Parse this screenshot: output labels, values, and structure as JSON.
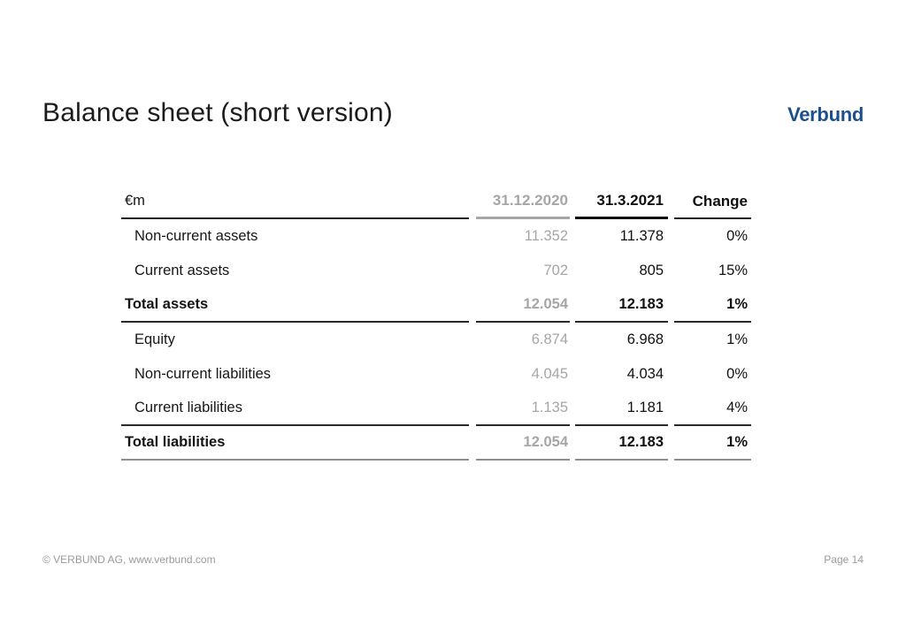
{
  "slide": {
    "title": "Balance sheet (short version)",
    "logo_text": "Verbund",
    "footer_left": "© VERBUND AG, www.verbund.com",
    "footer_right": "Page 14"
  },
  "colors": {
    "logo_blue": "#1c4f90",
    "prior_period_gray": "#a6a6a6",
    "text_black": "#161616",
    "footer_gray": "#9b9b9b"
  },
  "table": {
    "unit_label": "€m",
    "columns": [
      "31.12.2020",
      "31.3.2021",
      "Change"
    ],
    "rows": [
      {
        "label": "Non-current assets",
        "v2020": "11.352",
        "v2021": "11.378",
        "change": "0%"
      },
      {
        "label": "Current assets",
        "v2020": "702",
        "v2021": "805",
        "change": "15%"
      },
      {
        "label": "Total assets",
        "v2020": "12.054",
        "v2021": "12.183",
        "change": "1%"
      },
      {
        "label": "Equity",
        "v2020": "6.874",
        "v2021": "6.968",
        "change": "1%"
      },
      {
        "label": "Non-current liabilities",
        "v2020": "4.045",
        "v2021": "4.034",
        "change": "0%"
      },
      {
        "label": "Current liabilities",
        "v2020": "1.135",
        "v2021": "1.181",
        "change": "4%"
      },
      {
        "label": "Total liabilities",
        "v2020": "12.054",
        "v2021": "12.183",
        "change": "1%"
      }
    ]
  }
}
